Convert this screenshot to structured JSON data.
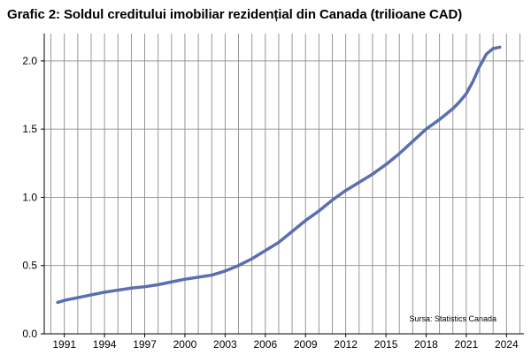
{
  "chart_data": {
    "type": "line",
    "title": "Grafic 2: Soldul creditului imobiliar rezidențial din Canada (trilioane CAD)",
    "xlabel": "",
    "ylabel": "",
    "xlim": [
      1989.5,
      2025.3
    ],
    "ylim": [
      0,
      2.2
    ],
    "x_ticks": [
      1991,
      1994,
      1997,
      2000,
      2003,
      2006,
      2009,
      2012,
      2015,
      2018,
      2021,
      2024
    ],
    "x_tick_labels": [
      "1991",
      "1994",
      "1997",
      "2000",
      "2003",
      "2006",
      "2009",
      "2012",
      "2015",
      "2018",
      "2021",
      "2024"
    ],
    "y_ticks": [
      0,
      0.5,
      1.0,
      1.5,
      2.0
    ],
    "y_tick_labels": [
      "0.0",
      "0.5",
      "1.0",
      "1.5",
      "2.0"
    ],
    "grid": true,
    "line_color": "#5a6faf",
    "series": [
      {
        "x": [
          1990.5,
          1991,
          1992,
          1993,
          1994,
          1995,
          1996,
          1997,
          1998,
          1999,
          2000,
          2001,
          2002,
          2003,
          2004,
          2005,
          2006,
          2007,
          2008,
          2009,
          2010,
          2011,
          2012,
          2013,
          2014,
          2015,
          2016,
          2017,
          2018,
          2019,
          2020,
          2020.5,
          2021,
          2021.5,
          2022,
          2022.5,
          2023,
          2023.5
        ],
        "y": [
          0.23,
          0.245,
          0.265,
          0.285,
          0.305,
          0.32,
          0.335,
          0.345,
          0.36,
          0.38,
          0.4,
          0.415,
          0.43,
          0.46,
          0.5,
          0.55,
          0.61,
          0.67,
          0.75,
          0.83,
          0.9,
          0.98,
          1.05,
          1.11,
          1.17,
          1.24,
          1.32,
          1.41,
          1.5,
          1.57,
          1.65,
          1.7,
          1.76,
          1.85,
          1.96,
          2.05,
          2.09,
          2.1
        ]
      }
    ],
    "annotation": "Sursa: Statistics Canada"
  }
}
